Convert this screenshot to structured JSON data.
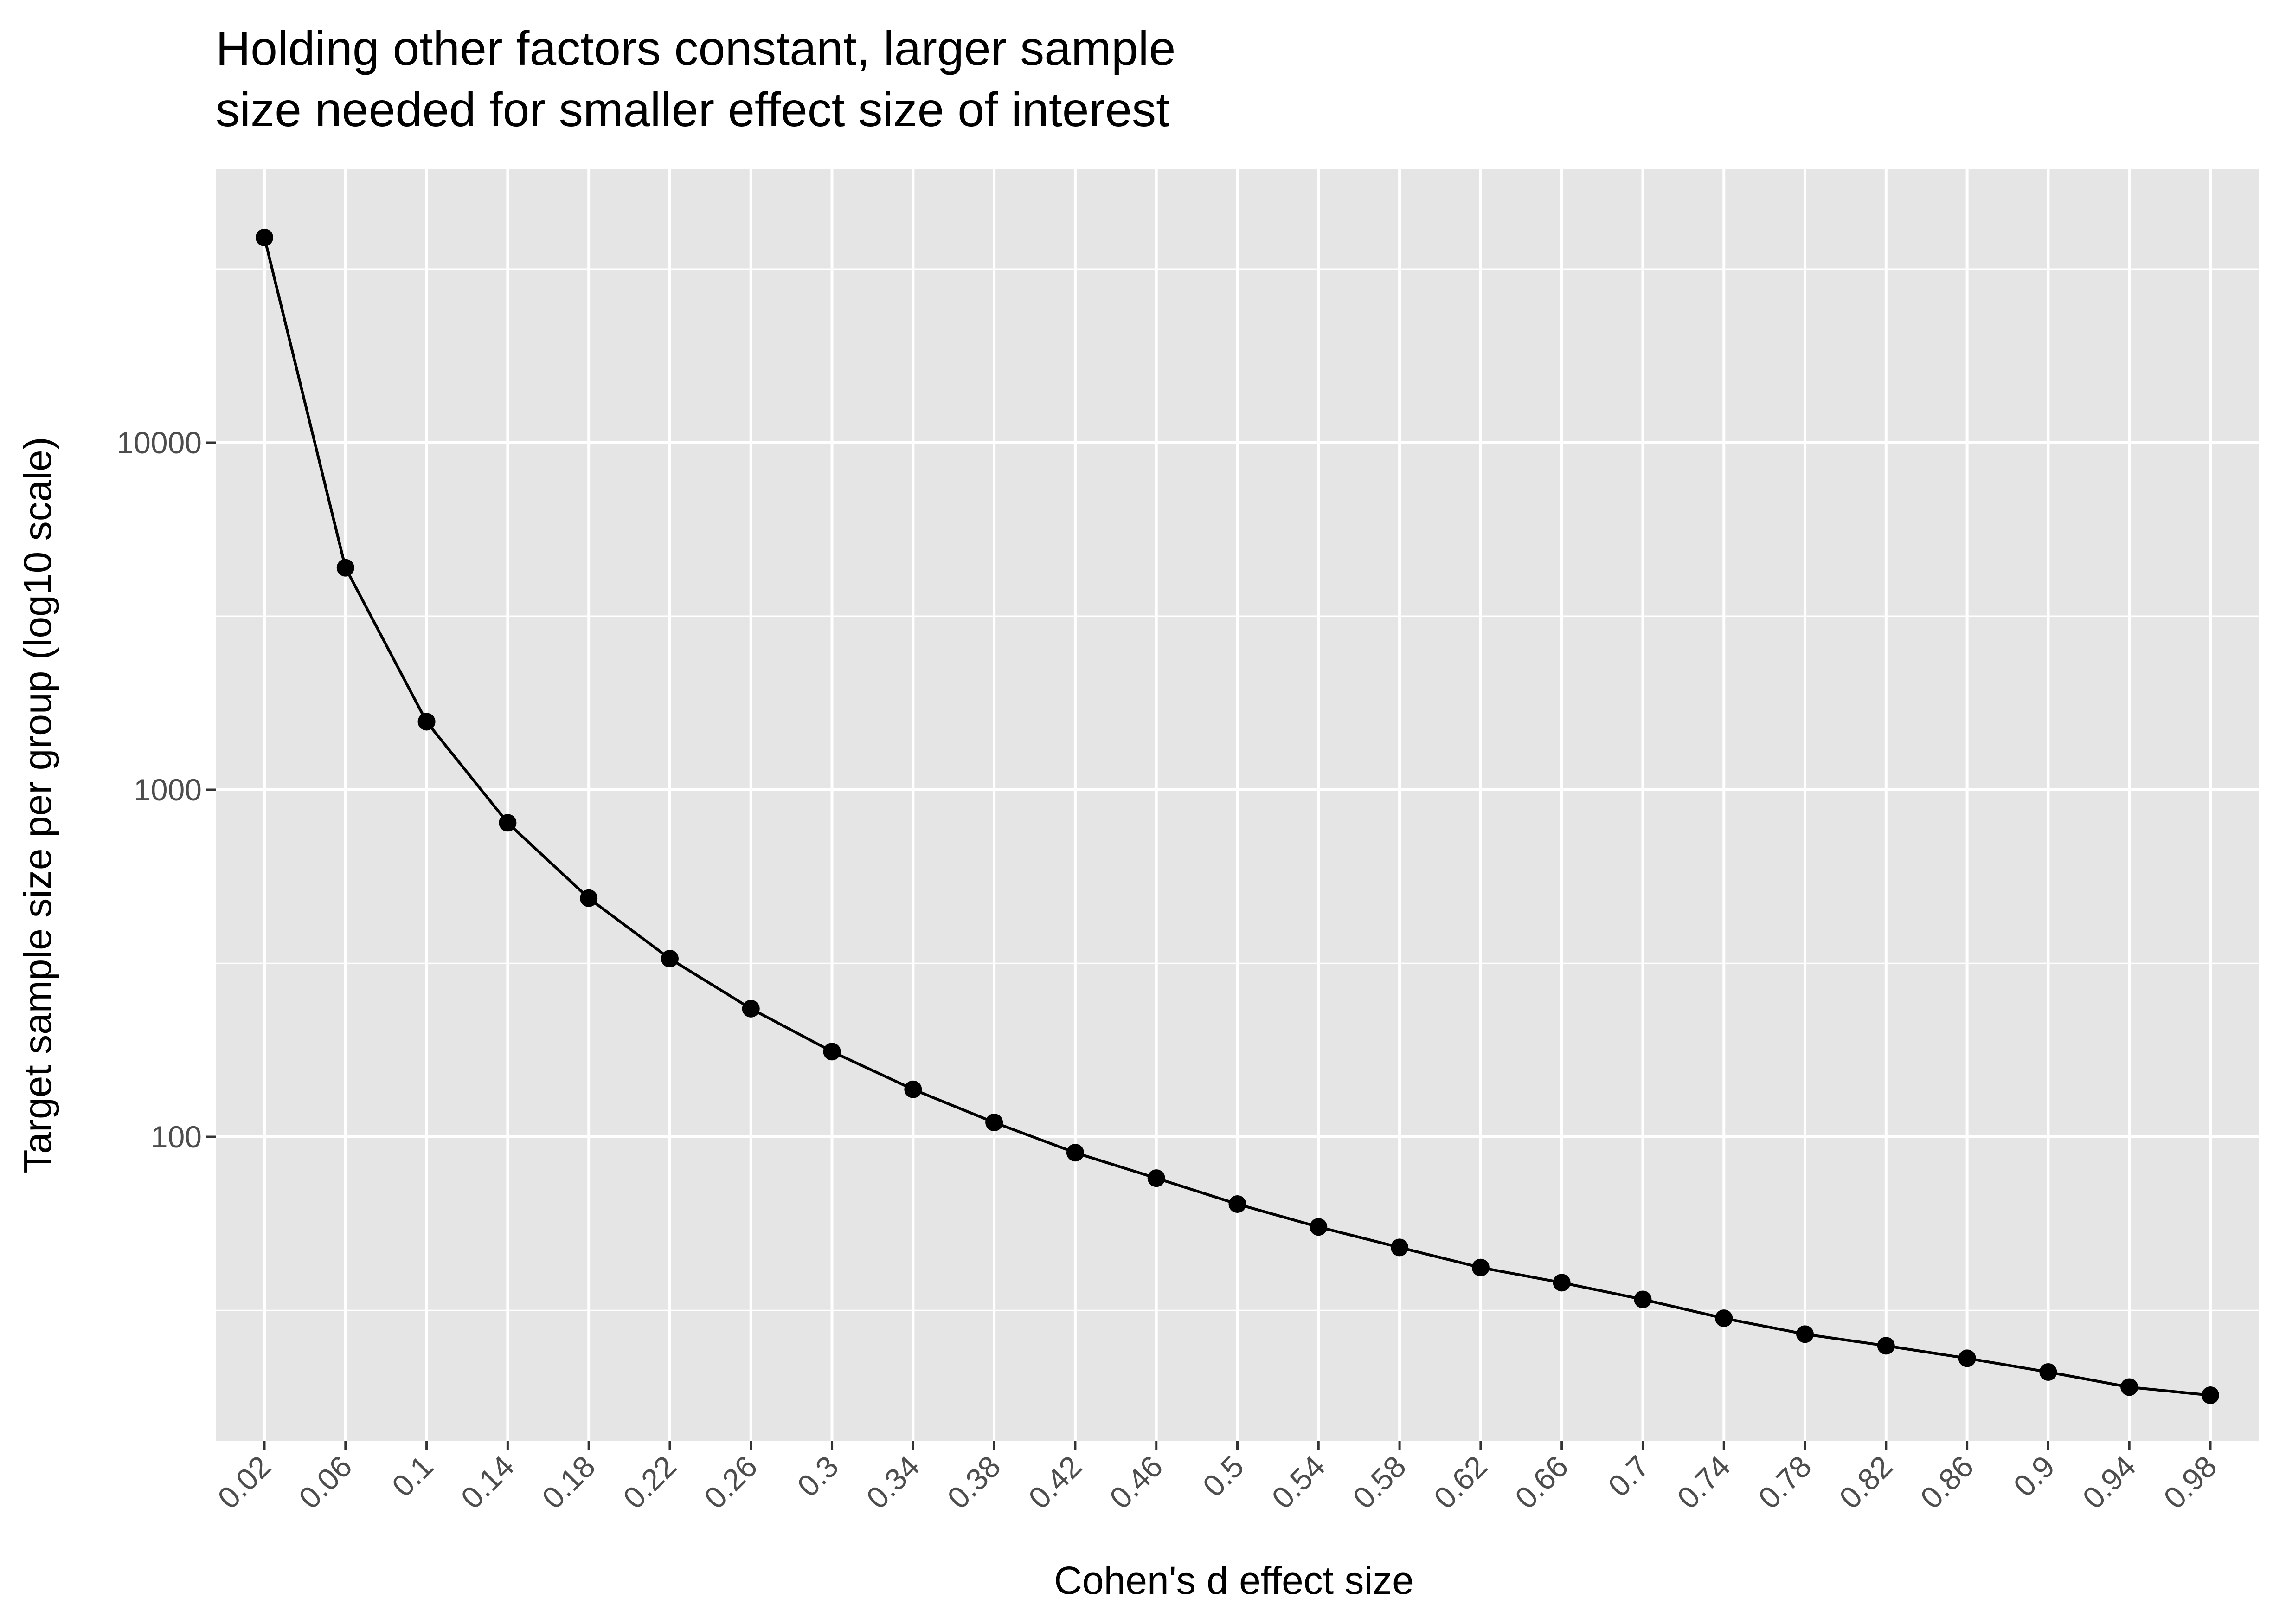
{
  "chart_data": {
    "type": "line",
    "title_lines": [
      "Holding other factors constant, larger sample",
      "size needed for smaller effect size of interest"
    ],
    "xlabel": "Cohen's d effect size",
    "ylabel": "Target sample size per group (log10 scale)",
    "y_scale": "log10",
    "ylim": [
      12,
      60000
    ],
    "grid": true,
    "legend": "none",
    "x_tick_labels": [
      "0.02",
      "0.06",
      "0.1",
      "0.14",
      "0.18",
      "0.22",
      "0.26",
      "0.3",
      "0.34",
      "0.38",
      "0.42",
      "0.46",
      "0.5",
      "0.54",
      "0.58",
      "0.62",
      "0.66",
      "0.7",
      "0.74",
      "0.78",
      "0.82",
      "0.86",
      "0.9",
      "0.94",
      "0.98"
    ],
    "y_tick_labels": [
      "100",
      "1000",
      "10000"
    ],
    "y_ticks": [
      100,
      1000,
      10000
    ],
    "y_minor_ticks": [
      31.6,
      316,
      3162,
      31623
    ],
    "x": [
      0.02,
      0.06,
      0.1,
      0.14,
      0.18,
      0.22,
      0.26,
      0.3,
      0.34,
      0.38,
      0.42,
      0.46,
      0.5,
      0.54,
      0.58,
      0.62,
      0.66,
      0.7,
      0.74,
      0.78,
      0.82,
      0.86,
      0.9,
      0.94,
      0.98
    ],
    "y": [
      39000,
      4360,
      1570,
      803,
      487,
      326,
      234,
      176,
      137,
      110,
      90,
      76,
      64,
      55,
      48,
      42,
      38,
      34,
      30,
      27,
      25,
      23,
      21,
      19,
      18
    ],
    "colors": {
      "panel": "#e5e5e5",
      "grid": "#ffffff",
      "line": "#000000",
      "point": "#000000",
      "tick": "#333333"
    }
  }
}
